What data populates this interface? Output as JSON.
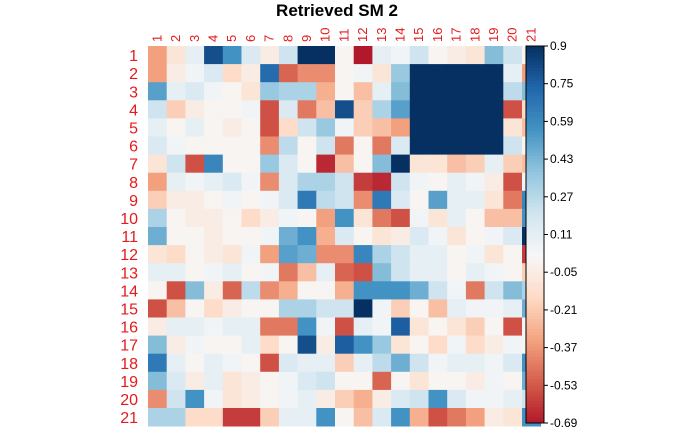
{
  "chart_data": {
    "type": "heatmap",
    "title": "Retrieved SM  2",
    "x_labels": [
      "1",
      "2",
      "3",
      "4",
      "5",
      "6",
      "7",
      "8",
      "9",
      "10",
      "11",
      "12",
      "13",
      "14",
      "15",
      "16",
      "17",
      "18",
      "19",
      "20",
      "21"
    ],
    "y_labels": [
      "1",
      "2",
      "3",
      "4",
      "5",
      "6",
      "7",
      "8",
      "9",
      "10",
      "11",
      "12",
      "13",
      "14",
      "15",
      "16",
      "17",
      "18",
      "19",
      "20",
      "21"
    ],
    "label_color": "#e41a1c",
    "colorbar": {
      "min": -0.69,
      "max": 0.9,
      "ticks": [
        "0.9",
        "0.75",
        "0.59",
        "0.43",
        "0.27",
        "0.11",
        "-0.05",
        "-0.21",
        "-0.37",
        "-0.53",
        "-0.69"
      ],
      "colors": [
        "#b2182b",
        "#d6604d",
        "#f4a582",
        "#fddbc7",
        "#f7f7f7",
        "#d1e5f0",
        "#92c5de",
        "#4393c3",
        "#2166ac",
        "#053061"
      ]
    },
    "matrix": [
      [
        -0.35,
        -0.1,
        0.1,
        0.8,
        0.55,
        0.15,
        -0.05,
        0.2,
        0.9,
        0.9,
        0.0,
        -0.69,
        0.1,
        0.05,
        0.2,
        0.0,
        -0.05,
        -0.1,
        0.4,
        0.2,
        0.0
      ],
      [
        -0.35,
        -0.05,
        0.05,
        0.15,
        -0.15,
        -0.05,
        0.7,
        -0.5,
        -0.4,
        -0.4,
        0.0,
        0.05,
        -0.1,
        0.35,
        0.9,
        0.9,
        0.9,
        0.9,
        0.9,
        0.1,
        -0.35
      ],
      [
        0.5,
        0.1,
        0.15,
        0.05,
        0.0,
        -0.1,
        0.35,
        0.3,
        0.3,
        -0.3,
        0.0,
        -0.25,
        0.1,
        0.4,
        0.9,
        0.9,
        0.9,
        0.9,
        0.9,
        0.25,
        0.4
      ],
      [
        0.2,
        -0.2,
        -0.05,
        0.0,
        0.0,
        0.05,
        -0.55,
        0.15,
        -0.45,
        -0.25,
        0.8,
        -0.2,
        0.3,
        0.5,
        0.9,
        0.9,
        0.9,
        0.9,
        0.9,
        -0.55,
        -0.15
      ],
      [
        0.1,
        0.0,
        0.1,
        0.0,
        -0.05,
        0.0,
        -0.55,
        -0.15,
        0.2,
        0.35,
        0.05,
        -0.2,
        -0.25,
        -0.35,
        0.9,
        0.9,
        0.9,
        0.9,
        0.9,
        -0.1,
        -0.25
      ],
      [
        0.15,
        0.05,
        0.0,
        0.0,
        0.0,
        0.0,
        -0.4,
        0.25,
        0.0,
        0.2,
        -0.45,
        0.0,
        -0.45,
        0.15,
        0.9,
        0.9,
        0.9,
        0.9,
        0.9,
        0.2,
        0.0
      ],
      [
        -0.1,
        0.2,
        -0.55,
        0.6,
        0.0,
        0.0,
        0.35,
        0.15,
        0.0,
        -0.65,
        -0.25,
        0.0,
        0.4,
        0.9,
        -0.1,
        -0.1,
        -0.25,
        -0.2,
        0.1,
        -0.2,
        -0.25
      ],
      [
        -0.35,
        0.1,
        0.05,
        0.1,
        0.15,
        0.05,
        -0.4,
        0.15,
        0.3,
        0.3,
        0.2,
        -0.6,
        -0.65,
        0.2,
        0.05,
        0.0,
        0.1,
        0.05,
        -0.05,
        -0.55,
        0.05
      ],
      [
        -0.2,
        -0.05,
        -0.05,
        0.0,
        0.05,
        0.0,
        0.05,
        0.15,
        0.65,
        0.25,
        0.2,
        -0.4,
        0.65,
        0.15,
        0.0,
        0.5,
        0.1,
        0.1,
        -0.1,
        -0.45,
        0.6
      ],
      [
        0.3,
        0.0,
        -0.05,
        -0.05,
        0.0,
        -0.15,
        -0.05,
        0.05,
        0.0,
        -0.35,
        0.55,
        -0.1,
        -0.45,
        -0.55,
        0.05,
        -0.1,
        0.1,
        0.0,
        -0.25,
        -0.25,
        0.55
      ],
      [
        0.45,
        0.0,
        0.0,
        -0.05,
        0.0,
        0.0,
        0.05,
        0.45,
        0.55,
        -0.3,
        0.15,
        0.0,
        -0.1,
        -0.05,
        0.15,
        0.05,
        -0.1,
        0.0,
        0.05,
        0.15,
        0.9
      ],
      [
        -0.1,
        -0.15,
        0.0,
        -0.05,
        -0.1,
        0.05,
        -0.35,
        0.5,
        0.45,
        -0.4,
        -0.4,
        0.6,
        0.3,
        0.2,
        0.1,
        0.1,
        0.0,
        0.05,
        -0.1,
        0.0,
        -0.6
      ],
      [
        0.1,
        0.1,
        0.0,
        0.05,
        0.1,
        0.0,
        0.05,
        -0.45,
        -0.25,
        0.1,
        -0.5,
        -0.55,
        0.4,
        0.2,
        0.1,
        0.1,
        0.0,
        0.1,
        0.05,
        0.0,
        -0.2
      ],
      [
        0.0,
        -0.55,
        0.4,
        -0.05,
        -0.5,
        0.25,
        -0.4,
        -0.3,
        0.0,
        0.0,
        -0.3,
        0.55,
        0.55,
        0.55,
        0.45,
        0.2,
        0.05,
        -0.45,
        0.2,
        0.4,
        0.3
      ],
      [
        -0.55,
        -0.25,
        0.0,
        -0.15,
        -0.05,
        0.0,
        0.0,
        0.3,
        0.3,
        0.2,
        0.2,
        0.9,
        0.05,
        -0.2,
        0.0,
        -0.25,
        0.1,
        0.05,
        0.05,
        0.1,
        0.45
      ],
      [
        -0.05,
        0.1,
        0.1,
        0.05,
        0.1,
        0.1,
        -0.45,
        -0.45,
        0.55,
        0.05,
        -0.55,
        0.1,
        0.05,
        0.75,
        -0.1,
        0.0,
        -0.1,
        -0.2,
        0.0,
        -0.55,
        0.0
      ],
      [
        0.4,
        -0.05,
        0.05,
        0.0,
        0.0,
        0.1,
        -0.15,
        0.0,
        0.8,
        -0.05,
        0.75,
        0.55,
        0.35,
        -0.1,
        0.0,
        -0.15,
        0.05,
        -0.15,
        -0.05,
        0.05,
        0.0
      ],
      [
        0.65,
        0.1,
        0.0,
        0.1,
        0.05,
        0.0,
        -0.55,
        0.15,
        0.1,
        0.1,
        -0.2,
        0.1,
        0.25,
        0.45,
        0.2,
        0.05,
        0.1,
        0.1,
        0.05,
        0.15,
        0.55
      ],
      [
        0.4,
        0.15,
        -0.05,
        0.1,
        -0.1,
        -0.05,
        0.0,
        0.05,
        0.15,
        0.2,
        0.0,
        0.0,
        -0.5,
        0.0,
        -0.1,
        0.0,
        0.0,
        -0.05,
        0.05,
        0.0,
        0.45
      ],
      [
        -0.4,
        0.2,
        0.55,
        0.05,
        -0.1,
        -0.05,
        0.0,
        0.05,
        0.1,
        -0.05,
        -0.2,
        -0.3,
        -0.05,
        0.15,
        0.2,
        0.55,
        0.15,
        0.05,
        0.05,
        0.1,
        0.2
      ],
      [
        0.3,
        0.3,
        -0.15,
        -0.15,
        -0.6,
        -0.6,
        -0.2,
        0.1,
        0.1,
        0.55,
        0.0,
        -0.25,
        0.15,
        0.55,
        -0.3,
        -0.55,
        -0.45,
        -0.35,
        -0.05,
        -0.1,
        0.55
      ]
    ]
  }
}
